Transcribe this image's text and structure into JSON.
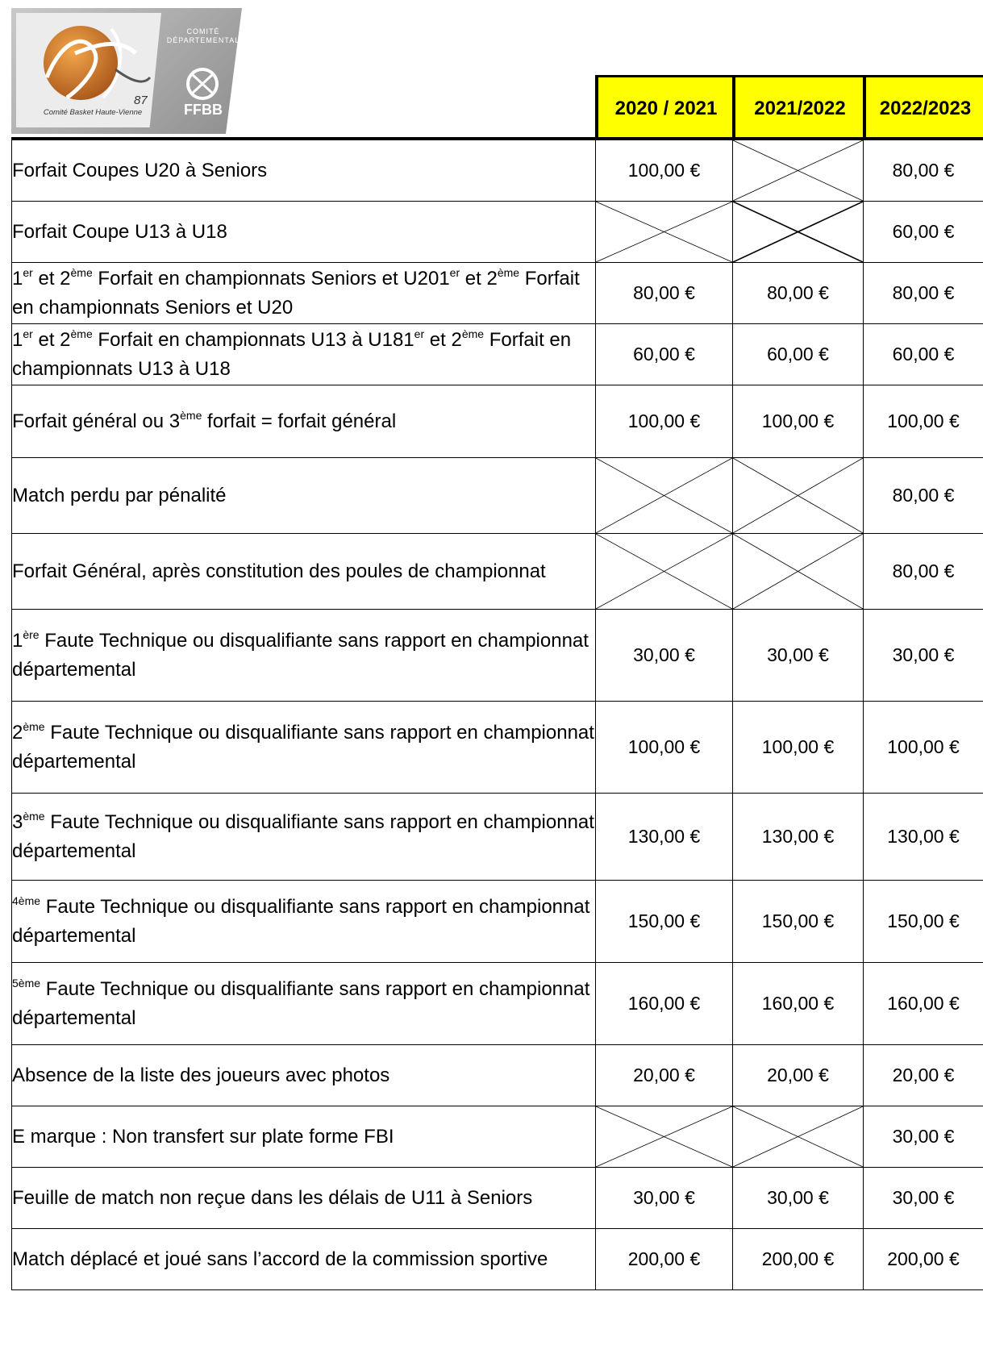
{
  "logo": {
    "caption": "Comité Basket Haute-Vienne",
    "number": "87",
    "comite_line1": "COMITÉ",
    "comite_line2": "DÉPARTEMENTAL",
    "ffbb": "FFBB"
  },
  "headers": [
    "2020 / 2021",
    "2021/2022",
    "2022/2023"
  ],
  "rows": [
    {
      "desc": [
        "Forfait  Coupes U20 à Seniors"
      ],
      "values": [
        "100,00 €",
        null,
        "80,00 €"
      ]
    },
    {
      "desc": [
        "Forfait Coupe U13 à U18"
      ],
      "values": [
        null,
        null,
        "60,00 €"
      ]
    },
    {
      "desc": [
        "1",
        "er",
        " et 2",
        "ème",
        " Forfait en championnats Seniors et U201",
        "er",
        " et 2",
        "ème",
        " Forfait en championnats Seniors et U20"
      ],
      "values": [
        "80,00 €",
        "80,00 €",
        "80,00 €"
      ]
    },
    {
      "desc": [
        "1",
        "er",
        " et 2",
        "ème",
        " Forfait en championnats U13 à U181",
        "er",
        " et 2",
        "ème",
        " Forfait en championnats U13 à U18"
      ],
      "values": [
        "60,00 €",
        "60,00 €",
        "60,00 €"
      ]
    },
    {
      "desc": [
        "Forfait général ou 3",
        "ème",
        " forfait = forfait général"
      ],
      "values": [
        "100,00 €",
        "100,00 €",
        "100,00 €"
      ]
    },
    {
      "desc": [
        "Match perdu par pénalité"
      ],
      "values": [
        null,
        null,
        "80,00 €"
      ]
    },
    {
      "desc": [
        "Forfait Général, après constitution des poules de championnat"
      ],
      "values": [
        null,
        null,
        "80,00 €"
      ]
    },
    {
      "desc": [
        "1",
        "ère",
        " Faute Technique ou disqualifiante sans rapport en championnat départemental"
      ],
      "values": [
        "30,00 €",
        "30,00 €",
        "30,00 €"
      ]
    },
    {
      "desc": [
        "2",
        "ème",
        " Faute Technique ou disqualifiante sans rapport en championnat départemental"
      ],
      "values": [
        "100,00 €",
        "100,00 €",
        "100,00 €"
      ]
    },
    {
      "desc": [
        "3",
        "ème",
        " Faute Technique ou disqualifiante sans rapport en championnat départemental"
      ],
      "values": [
        "130,00 €",
        "130,00 €",
        "130,00 €"
      ]
    },
    {
      "desc": [
        "",
        "4ème",
        " Faute Technique ou disqualifiante sans rapport en championnat départemental"
      ],
      "values": [
        "150,00 €",
        "150,00 €",
        "150,00 €"
      ]
    },
    {
      "desc": [
        "",
        "5ème",
        " Faute Technique ou disqualifiante sans rapport en championnat départemental"
      ],
      "values": [
        "160,00 €",
        "160,00 €",
        "160,00 €"
      ]
    },
    {
      "desc": [
        "Absence de la liste des joueurs avec photos"
      ],
      "values": [
        "20,00 €",
        "20,00 €",
        "20,00 €"
      ]
    },
    {
      "desc": [
        "E marque : Non transfert sur plate forme FBI"
      ],
      "values": [
        null,
        null,
        "30,00 €"
      ]
    },
    {
      "desc": [
        "Feuille de match non reçue dans les délais de U11 à Seniors"
      ],
      "values": [
        "30,00 €",
        "30,00 €",
        "30,00 €"
      ]
    },
    {
      "desc": [
        "Match déplacé et joué sans l’accord de la commission sportive"
      ],
      "values": [
        "200,00 €",
        "200,00 €",
        "200,00 €"
      ]
    }
  ]
}
